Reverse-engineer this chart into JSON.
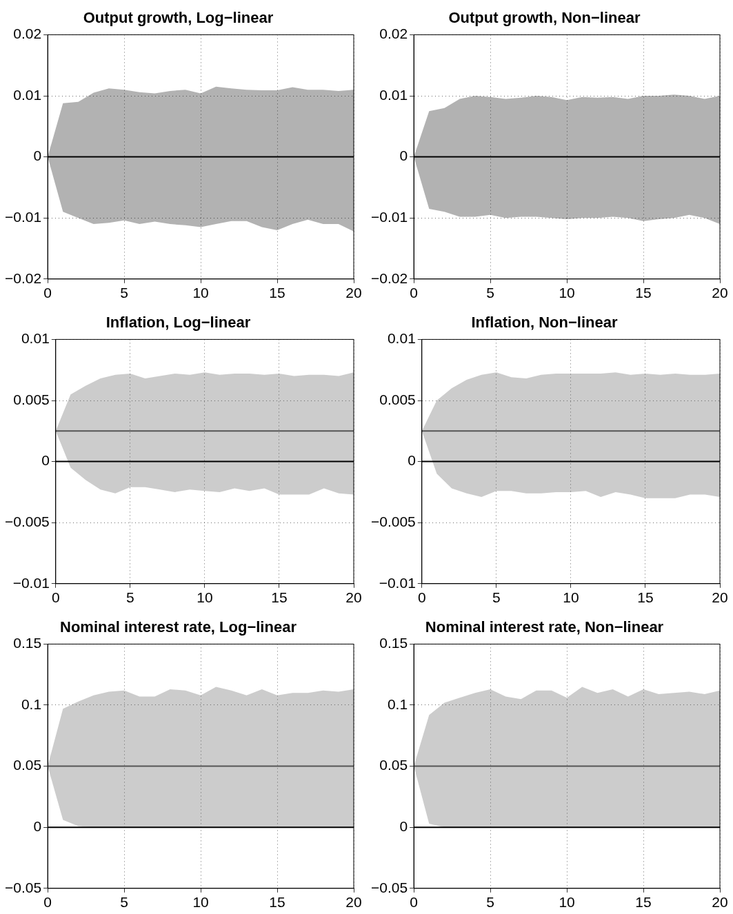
{
  "chart_data": [
    {
      "type": "line",
      "title": "Output growth, Log−linear",
      "x": [
        0,
        1,
        2,
        3,
        4,
        5,
        6,
        7,
        8,
        9,
        10,
        11,
        12,
        13,
        14,
        15,
        16,
        17,
        18,
        19,
        20
      ],
      "xlim": [
        0,
        20
      ],
      "xticks": [
        0,
        5,
        10,
        15,
        20
      ],
      "ylim": [
        -0.02,
        0.02
      ],
      "yticks": [
        {
          "value": -0.02,
          "label": "−0.02"
        },
        {
          "value": -0.01,
          "label": "−0.01"
        },
        0,
        0.01,
        0.02
      ],
      "grid": true,
      "line_style": "solid",
      "marker": "none",
      "series": [
        {
          "color": "#000000",
          "values": [
            0,
            0,
            0,
            0,
            0,
            0,
            0,
            0,
            0,
            0,
            0,
            0,
            0,
            0,
            0,
            0,
            0,
            0,
            0,
            0,
            0
          ],
          "lower": [
            0,
            -0.009,
            -0.01,
            -0.011,
            -0.0108,
            -0.0104,
            -0.011,
            -0.0106,
            -0.011,
            -0.0112,
            -0.0115,
            -0.011,
            -0.0105,
            -0.0105,
            -0.0115,
            -0.012,
            -0.011,
            -0.0103,
            -0.011,
            -0.011,
            -0.0122
          ],
          "upper": [
            0,
            0.0088,
            0.009,
            0.0105,
            0.0112,
            0.011,
            0.0106,
            0.0104,
            0.0108,
            0.011,
            0.0104,
            0.0115,
            0.0112,
            0.011,
            0.0109,
            0.0109,
            0.0114,
            0.011,
            0.011,
            0.0108,
            0.011
          ]
        }
      ]
    },
    {
      "type": "line",
      "title": "Output growth, Non−linear",
      "x": [
        0,
        1,
        2,
        3,
        4,
        5,
        6,
        7,
        8,
        9,
        10,
        11,
        12,
        13,
        14,
        15,
        16,
        17,
        18,
        19,
        20
      ],
      "xlim": [
        0,
        20
      ],
      "xticks": [
        0,
        5,
        10,
        15,
        20
      ],
      "ylim": [
        -0.02,
        0.02
      ],
      "yticks": [
        {
          "value": -0.02,
          "label": "−0.02"
        },
        {
          "value": -0.01,
          "label": "−0.01"
        },
        0,
        0.01,
        0.02
      ],
      "grid": true,
      "line_style": "solid",
      "marker": "none",
      "series": [
        {
          "color": "#000000",
          "values": [
            0,
            0,
            0,
            0,
            0,
            0,
            0,
            0,
            0,
            0,
            0,
            0,
            0,
            0,
            0,
            0,
            0,
            0,
            0,
            0,
            0
          ],
          "lower": [
            0,
            -0.0085,
            -0.009,
            -0.0098,
            -0.0098,
            -0.0095,
            -0.01,
            -0.0098,
            -0.0098,
            -0.01,
            -0.0102,
            -0.01,
            -0.01,
            -0.0098,
            -0.01,
            -0.0105,
            -0.0102,
            -0.01,
            -0.0095,
            -0.01,
            -0.011
          ],
          "upper": [
            0,
            0.0075,
            0.008,
            0.0095,
            0.01,
            0.0098,
            0.0095,
            0.0097,
            0.01,
            0.0098,
            0.0093,
            0.0098,
            0.0097,
            0.0098,
            0.0095,
            0.01,
            0.01,
            0.0102,
            0.01,
            0.0095,
            0.01
          ]
        }
      ]
    },
    {
      "type": "line",
      "title": "Inflation, Log−linear",
      "x": [
        0,
        1,
        2,
        3,
        4,
        5,
        6,
        7,
        8,
        9,
        10,
        11,
        12,
        13,
        14,
        15,
        16,
        17,
        18,
        19,
        20
      ],
      "xlim": [
        0,
        20
      ],
      "xticks": [
        0,
        5,
        10,
        15,
        20
      ],
      "ylim": [
        -0.01,
        0.01
      ],
      "yticks": [
        {
          "value": -0.01,
          "label": "−0.01"
        },
        {
          "value": -0.005,
          "label": "−0.005"
        },
        0,
        0.005,
        0.01
      ],
      "grid": true,
      "line_style": "solid",
      "marker": "none",
      "series": [
        {
          "color": "#555555",
          "values": [
            0.0025,
            0.0025,
            0.0025,
            0.0025,
            0.0025,
            0.0025,
            0.0025,
            0.0025,
            0.0025,
            0.0025,
            0.0025,
            0.0025,
            0.0025,
            0.0025,
            0.0025,
            0.0025,
            0.0025,
            0.0025,
            0.0025,
            0.0025,
            0.0025
          ],
          "lower": [
            0.0025,
            -0.0005,
            -0.0015,
            -0.0023,
            -0.0026,
            -0.0021,
            -0.0021,
            -0.0023,
            -0.0025,
            -0.0023,
            -0.0024,
            -0.0025,
            -0.0022,
            -0.0024,
            -0.0022,
            -0.0027,
            -0.0027,
            -0.0027,
            -0.0022,
            -0.0026,
            -0.0027
          ],
          "upper": [
            0.0025,
            0.0055,
            0.0062,
            0.0068,
            0.0071,
            0.0072,
            0.0068,
            0.007,
            0.0072,
            0.0071,
            0.0073,
            0.0071,
            0.0072,
            0.0072,
            0.0071,
            0.0072,
            0.007,
            0.0071,
            0.0071,
            0.007,
            0.0073
          ]
        }
      ],
      "ref_lines": [
        {
          "axis": "y",
          "value": 0,
          "color": "#000000"
        }
      ]
    },
    {
      "type": "line",
      "title": "Inflation, Non−linear",
      "x": [
        0,
        1,
        2,
        3,
        4,
        5,
        6,
        7,
        8,
        9,
        10,
        11,
        12,
        13,
        14,
        15,
        16,
        17,
        18,
        19,
        20
      ],
      "xlim": [
        0,
        20
      ],
      "xticks": [
        0,
        5,
        10,
        15,
        20
      ],
      "ylim": [
        -0.01,
        0.01
      ],
      "yticks": [
        {
          "value": -0.01,
          "label": "−0.01"
        },
        {
          "value": -0.005,
          "label": "−0.005"
        },
        0,
        0.005,
        0.01
      ],
      "grid": true,
      "line_style": "solid",
      "marker": "none",
      "series": [
        {
          "color": "#555555",
          "values": [
            0.0025,
            0.0025,
            0.0025,
            0.0025,
            0.0025,
            0.0025,
            0.0025,
            0.0025,
            0.0025,
            0.0025,
            0.0025,
            0.0025,
            0.0025,
            0.0025,
            0.0025,
            0.0025,
            0.0025,
            0.0025,
            0.0025,
            0.0025,
            0.0025
          ],
          "lower": [
            0.0025,
            -0.001,
            -0.0022,
            -0.0026,
            -0.0029,
            -0.0024,
            -0.0024,
            -0.0026,
            -0.0026,
            -0.0025,
            -0.0025,
            -0.0024,
            -0.0029,
            -0.0025,
            -0.0027,
            -0.003,
            -0.003,
            -0.003,
            -0.0027,
            -0.0027,
            -0.0029
          ],
          "upper": [
            0.0025,
            0.005,
            0.006,
            0.0067,
            0.0071,
            0.0073,
            0.0069,
            0.0068,
            0.0071,
            0.0072,
            0.0072,
            0.0072,
            0.0072,
            0.0073,
            0.0071,
            0.0072,
            0.0071,
            0.0072,
            0.0071,
            0.0071,
            0.0072
          ]
        }
      ],
      "ref_lines": [
        {
          "axis": "y",
          "value": 0,
          "color": "#000000"
        }
      ]
    },
    {
      "type": "line",
      "title": "Nominal interest rate, Log−linear",
      "x": [
        0,
        1,
        2,
        3,
        4,
        5,
        6,
        7,
        8,
        9,
        10,
        11,
        12,
        13,
        14,
        15,
        16,
        17,
        18,
        19,
        20
      ],
      "xlim": [
        0,
        20
      ],
      "xticks": [
        0,
        5,
        10,
        15,
        20
      ],
      "ylim": [
        -0.05,
        0.15
      ],
      "yticks": [
        {
          "value": -0.05,
          "label": "−0.05"
        },
        0,
        0.05,
        0.1,
        0.15
      ],
      "grid": true,
      "line_style": "solid",
      "marker": "none",
      "series": [
        {
          "color": "#555555",
          "values": [
            0.05,
            0.05,
            0.05,
            0.05,
            0.05,
            0.05,
            0.05,
            0.05,
            0.05,
            0.05,
            0.05,
            0.05,
            0.05,
            0.05,
            0.05,
            0.05,
            0.05,
            0.05,
            0.05,
            0.05,
            0.05
          ],
          "lower": [
            0.05,
            0.006,
            0.001,
            0,
            0,
            0,
            0,
            0,
            0,
            0,
            0,
            0,
            0,
            0,
            0,
            0,
            0,
            0,
            0,
            0,
            0
          ],
          "upper": [
            0.05,
            0.097,
            0.103,
            0.108,
            0.111,
            0.112,
            0.107,
            0.107,
            0.113,
            0.112,
            0.108,
            0.115,
            0.112,
            0.108,
            0.113,
            0.108,
            0.11,
            0.11,
            0.112,
            0.111,
            0.113
          ]
        }
      ],
      "ref_lines": [
        {
          "axis": "y",
          "value": 0,
          "color": "#000000"
        }
      ]
    },
    {
      "type": "line",
      "title": "Nominal interest rate, Non−linear",
      "x": [
        0,
        1,
        2,
        3,
        4,
        5,
        6,
        7,
        8,
        9,
        10,
        11,
        12,
        13,
        14,
        15,
        16,
        17,
        18,
        19,
        20
      ],
      "xlim": [
        0,
        20
      ],
      "xticks": [
        0,
        5,
        10,
        15,
        20
      ],
      "ylim": [
        -0.05,
        0.15
      ],
      "yticks": [
        {
          "value": -0.05,
          "label": "−0.05"
        },
        0,
        0.05,
        0.1,
        0.15
      ],
      "grid": true,
      "line_style": "solid",
      "marker": "none",
      "series": [
        {
          "color": "#555555",
          "values": [
            0.05,
            0.05,
            0.05,
            0.05,
            0.05,
            0.05,
            0.05,
            0.05,
            0.05,
            0.05,
            0.05,
            0.05,
            0.05,
            0.05,
            0.05,
            0.05,
            0.05,
            0.05,
            0.05,
            0.05,
            0.05
          ],
          "lower": [
            0.05,
            0.003,
            0,
            0,
            0,
            0,
            0,
            0,
            0,
            0,
            0,
            0,
            0,
            0,
            0,
            0,
            0,
            0,
            0,
            0,
            0
          ],
          "upper": [
            0.05,
            0.092,
            0.102,
            0.106,
            0.11,
            0.113,
            0.107,
            0.105,
            0.112,
            0.112,
            0.106,
            0.115,
            0.11,
            0.113,
            0.107,
            0.113,
            0.109,
            0.11,
            0.111,
            0.109,
            0.112
          ]
        }
      ],
      "ref_lines": [
        {
          "axis": "y",
          "value": 0,
          "color": "#000000"
        }
      ]
    }
  ]
}
